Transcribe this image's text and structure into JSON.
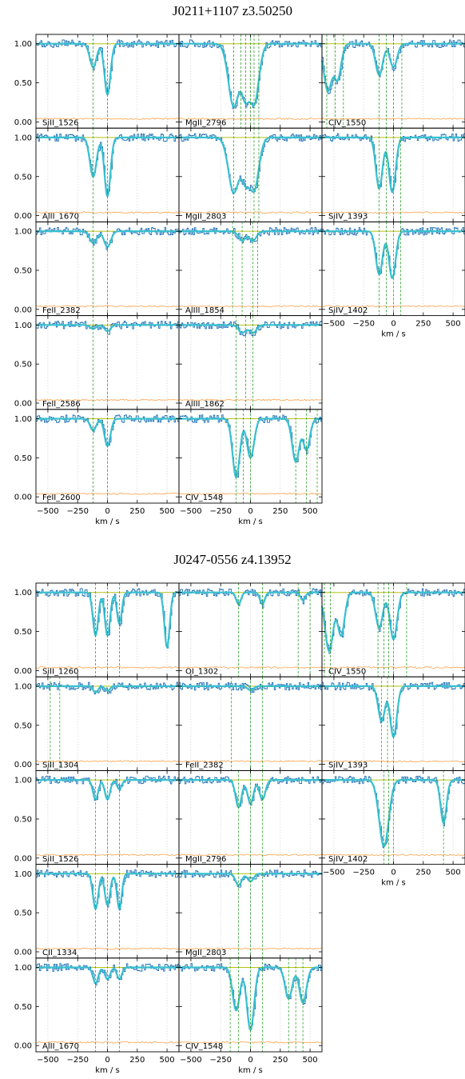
{
  "colors": {
    "flux": "#1f6fb4",
    "model": "#38c0cf",
    "error": "#ffa24a",
    "continuum": "#b5c214",
    "velocity_marker": "#2ca02c",
    "grid": "#c8c8c8"
  },
  "chart_data": [
    {
      "type": "line",
      "title": "J0211+1107 z3.50250",
      "xlabel": "km / s",
      "xlim": [
        -600,
        600
      ],
      "ylim": [
        -0.08,
        1.12
      ],
      "xticks": [
        -500,
        -250,
        0,
        250,
        500
      ],
      "yticks": [
        0.0,
        0.5,
        1.0
      ],
      "grid": true,
      "columns": [
        [
          "SiII_1526",
          "AlII_1670",
          "FeII_2382",
          "FeII_2586",
          "FeII_2600"
        ],
        [
          "MgII_2796",
          "MgII_2803",
          "AlIII_1854",
          "AlIII_1862",
          "CIV_1548"
        ],
        [
          "CIV_1550",
          "SiIV_1393",
          "SiIV_1402"
        ]
      ],
      "panels": [
        {
          "label": "SiII_1526",
          "components": [
            {
              "v": -120,
              "depth": 0.3,
              "width": 28
            },
            {
              "v": 0,
              "depth": 0.65,
              "width": 25
            }
          ],
          "markers": [
            -120,
            0
          ]
        },
        {
          "label": "AlII_1670",
          "components": [
            {
              "v": -120,
              "depth": 0.5,
              "width": 28
            },
            {
              "v": 0,
              "depth": 0.75,
              "width": 25
            }
          ],
          "markers": [
            -120,
            0
          ]
        },
        {
          "label": "FeII_2382",
          "components": [
            {
              "v": -120,
              "depth": 0.15,
              "width": 30
            },
            {
              "v": 0,
              "depth": 0.2,
              "width": 28
            }
          ],
          "markers": [
            -120,
            0
          ]
        },
        {
          "label": "FeII_2586",
          "components": [
            {
              "v": -120,
              "depth": 0.05,
              "width": 25
            },
            {
              "v": 0,
              "depth": 0.08,
              "width": 25
            }
          ],
          "markers": [
            -120,
            0
          ]
        },
        {
          "label": "FeII_2600",
          "components": [
            {
              "v": -120,
              "depth": 0.15,
              "width": 25
            },
            {
              "v": 0,
              "depth": 0.35,
              "width": 25
            }
          ],
          "markers": [
            -120,
            0
          ]
        },
        {
          "label": "MgII_2796",
          "components": [
            {
              "v": -140,
              "depth": 0.8,
              "width": 45
            },
            {
              "v": -40,
              "depth": 0.7,
              "width": 40
            },
            {
              "v": 30,
              "depth": 0.75,
              "width": 40
            }
          ],
          "markers": [
            -140,
            -80,
            -40,
            0,
            30,
            70
          ]
        },
        {
          "label": "MgII_2803",
          "components": [
            {
              "v": -140,
              "depth": 0.7,
              "width": 45
            },
            {
              "v": -40,
              "depth": 0.55,
              "width": 40
            },
            {
              "v": 30,
              "depth": 0.65,
              "width": 40
            }
          ],
          "markers": [
            -140,
            -40,
            30,
            70
          ]
        },
        {
          "label": "AlIII_1854",
          "components": [
            {
              "v": -70,
              "depth": 0.12,
              "width": 30
            },
            {
              "v": 20,
              "depth": 0.12,
              "width": 30
            }
          ],
          "markers": [
            -150,
            -70,
            20,
            60
          ]
        },
        {
          "label": "AlIII_1862",
          "components": [
            {
              "v": -70,
              "depth": 0.1,
              "width": 30
            },
            {
              "v": 20,
              "depth": 0.1,
              "width": 30
            }
          ],
          "markers": [
            -120,
            -40,
            20
          ]
        },
        {
          "label": "CIV_1548",
          "components": [
            {
              "v": -120,
              "depth": 0.75,
              "width": 30
            },
            {
              "v": 0,
              "depth": 0.5,
              "width": 30
            },
            {
              "v": 380,
              "depth": 0.55,
              "width": 30
            },
            {
              "v": 470,
              "depth": 0.4,
              "width": 28
            }
          ],
          "markers": [
            -120,
            -60,
            0,
            380,
            470,
            560
          ]
        },
        {
          "label": "CIV_1550",
          "components": [
            {
              "v": -550,
              "depth": 0.6,
              "width": 35
            },
            {
              "v": -470,
              "depth": 0.45,
              "width": 30
            },
            {
              "v": -120,
              "depth": 0.4,
              "width": 30
            },
            {
              "v": 0,
              "depth": 0.3,
              "width": 30
            }
          ],
          "markers": [
            -560,
            -490,
            -420,
            -120,
            -60,
            0,
            70
          ]
        },
        {
          "label": "SiIV_1393",
          "components": [
            {
              "v": -120,
              "depth": 0.65,
              "width": 28
            },
            {
              "v": -10,
              "depth": 0.7,
              "width": 28
            }
          ],
          "markers": [
            -120,
            -60,
            0,
            60
          ]
        },
        {
          "label": "SiIV_1402",
          "components": [
            {
              "v": -120,
              "depth": 0.55,
              "width": 28
            },
            {
              "v": -10,
              "depth": 0.6,
              "width": 28
            }
          ],
          "markers": [
            -120,
            -60,
            0,
            60
          ]
        }
      ]
    },
    {
      "type": "line",
      "title": "J0247-0556 z4.13952",
      "xlabel": "km / s",
      "xlim": [
        -600,
        600
      ],
      "ylim": [
        -0.08,
        1.12
      ],
      "xticks": [
        -500,
        -250,
        0,
        250,
        500
      ],
      "yticks": [
        0.0,
        0.5,
        1.0
      ],
      "grid": true,
      "columns": [
        [
          "SiII_1260",
          "SiII_1304",
          "SiII_1526",
          "CII_1334",
          "AlII_1670"
        ],
        [
          "OI_1302",
          "FeII_2382",
          "MgII_2796",
          "MgII_2803",
          "CIV_1548"
        ],
        [
          "CIV_1550",
          "SiIV_1393",
          "SiIV_1402"
        ]
      ],
      "panels": [
        {
          "label": "SiII_1260",
          "components": [
            {
              "v": -100,
              "depth": 0.55,
              "width": 22
            },
            {
              "v": 0,
              "depth": 0.55,
              "width": 22
            },
            {
              "v": 100,
              "depth": 0.4,
              "width": 20
            },
            {
              "v": 500,
              "depth": 0.7,
              "width": 22
            }
          ],
          "markers": [
            -100,
            0,
            100
          ]
        },
        {
          "label": "SiII_1304",
          "components": [
            {
              "v": -100,
              "depth": 0.08,
              "width": 20
            },
            {
              "v": 0,
              "depth": 0.06,
              "width": 20
            }
          ],
          "markers": [
            -480,
            -400
          ]
        },
        {
          "label": "SiII_1526",
          "components": [
            {
              "v": -100,
              "depth": 0.25,
              "width": 22
            },
            {
              "v": 0,
              "depth": 0.25,
              "width": 22
            },
            {
              "v": 100,
              "depth": 0.12,
              "width": 20
            }
          ],
          "markers": [
            -100,
            0,
            100
          ]
        },
        {
          "label": "CII_1334",
          "components": [
            {
              "v": -100,
              "depth": 0.45,
              "width": 22
            },
            {
              "v": 0,
              "depth": 0.4,
              "width": 22
            },
            {
              "v": 100,
              "depth": 0.45,
              "width": 20
            }
          ],
          "markers": [
            -100,
            0,
            100
          ]
        },
        {
          "label": "AlII_1670",
          "components": [
            {
              "v": -100,
              "depth": 0.2,
              "width": 22
            },
            {
              "v": 0,
              "depth": 0.15,
              "width": 22
            },
            {
              "v": 100,
              "depth": 0.15,
              "width": 20
            }
          ],
          "markers": [
            -100,
            0,
            100
          ]
        },
        {
          "label": "OI_1302",
          "components": [
            {
              "v": -100,
              "depth": 0.15,
              "width": 20
            },
            {
              "v": 100,
              "depth": 0.15,
              "width": 20
            },
            {
              "v": 440,
              "depth": 0.1,
              "width": 20
            }
          ],
          "markers": [
            -100,
            100,
            400,
            500
          ]
        },
        {
          "label": "FeII_2382",
          "components": [
            {
              "v": 0,
              "depth": 0.05,
              "width": 25
            }
          ],
          "markers": [
            -160,
            0,
            100
          ]
        },
        {
          "label": "MgII_2796",
          "components": [
            {
              "v": -100,
              "depth": 0.35,
              "width": 25
            },
            {
              "v": 0,
              "depth": 0.3,
              "width": 25
            },
            {
              "v": 100,
              "depth": 0.25,
              "width": 25
            }
          ],
          "markers": [
            -100,
            0,
            100
          ]
        },
        {
          "label": "MgII_2803",
          "components": [
            {
              "v": -100,
              "depth": 0.15,
              "width": 25
            },
            {
              "v": 0,
              "depth": 0.1,
              "width": 25
            }
          ],
          "markers": [
            -100,
            0,
            100
          ]
        },
        {
          "label": "CIV_1548",
          "components": [
            {
              "v": -120,
              "depth": 0.55,
              "width": 30
            },
            {
              "v": 0,
              "depth": 0.8,
              "width": 30
            },
            {
              "v": 320,
              "depth": 0.4,
              "width": 30
            },
            {
              "v": 440,
              "depth": 0.45,
              "width": 30
            }
          ],
          "markers": [
            -170,
            -100,
            0,
            100,
            320,
            380,
            440
          ]
        },
        {
          "label": "CIV_1550",
          "components": [
            {
              "v": -540,
              "depth": 0.75,
              "width": 35
            },
            {
              "v": -440,
              "depth": 0.55,
              "width": 30
            },
            {
              "v": -120,
              "depth": 0.45,
              "width": 30
            },
            {
              "v": 0,
              "depth": 0.6,
              "width": 30
            }
          ],
          "markers": [
            -580,
            -530,
            -130,
            -80,
            -40,
            0,
            110
          ]
        },
        {
          "label": "SiIV_1393",
          "components": [
            {
              "v": -100,
              "depth": 0.45,
              "width": 28
            },
            {
              "v": 0,
              "depth": 0.65,
              "width": 28
            }
          ],
          "markers": [
            -100,
            -50,
            0
          ]
        },
        {
          "label": "SiIV_1402",
          "components": [
            {
              "v": -80,
              "depth": 0.85,
              "width": 40
            },
            {
              "v": 420,
              "depth": 0.55,
              "width": 25
            }
          ],
          "markers": [
            -80,
            -40,
            0,
            420
          ]
        }
      ]
    }
  ]
}
